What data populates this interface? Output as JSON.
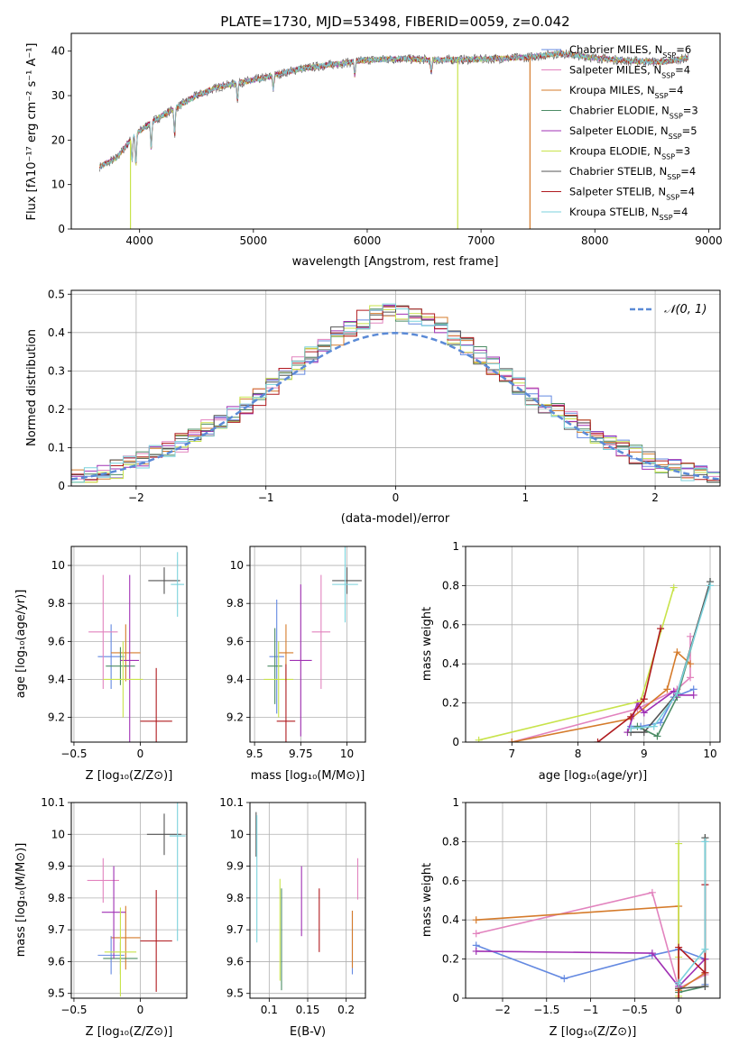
{
  "colors": [
    "#6489E1",
    "#E283BE",
    "#D57B2B",
    "#4C8C65",
    "#A030B4",
    "#C8E34B",
    "#555555",
    "#B01B1F",
    "#7BD2DC"
  ],
  "legend_labels": [
    "Chabrier MILES, N",
    "Salpeter MILES, N",
    "Kroupa MILES, N",
    "Chabrier ELODIE, N",
    "Salpeter ELODIE, N",
    "Kroupa ELODIE, N",
    "Chabrier STELIB, N",
    "Salpeter STELIB, N",
    "Kroupa STELIB, N"
  ],
  "legend_sub": "SSP",
  "legend_counts": [
    "=6",
    "=4",
    "=4",
    "=3",
    "=5",
    "=3",
    "=4",
    "=4",
    "=4"
  ],
  "chart_data": [
    {
      "id": "spectrum",
      "type": "line",
      "title": "PLATE=1730, MJD=53498, FIBERID=0059, z=0.042",
      "xlabel": "wavelength [Angstrom, rest frame]",
      "ylabel": "Flux [fλ10⁻¹⁷ erg cm⁻² s⁻¹ A⁻¹]",
      "xlim": [
        3400,
        9100
      ],
      "ylim": [
        0,
        44
      ],
      "xticks": [
        4000,
        5000,
        6000,
        7000,
        8000,
        9000
      ],
      "yticks": [
        0,
        10,
        20,
        30,
        40
      ],
      "data_range": [
        3650,
        8820
      ],
      "continuum": [
        [
          3650,
          14
        ],
        [
          3800,
          16
        ],
        [
          3950,
          21
        ],
        [
          4100,
          24
        ],
        [
          4300,
          27
        ],
        [
          4500,
          30
        ],
        [
          4700,
          32
        ],
        [
          4900,
          33
        ],
        [
          5100,
          34
        ],
        [
          5400,
          36
        ],
        [
          5700,
          37
        ],
        [
          6000,
          38
        ],
        [
          6300,
          38.3
        ],
        [
          6600,
          38
        ],
        [
          7000,
          38.2
        ],
        [
          7400,
          38.6
        ],
        [
          7700,
          39.5
        ],
        [
          8000,
          38.5
        ],
        [
          8300,
          37.8
        ],
        [
          8600,
          37.6
        ],
        [
          8820,
          38.5
        ]
      ],
      "dips": [
        [
          3934,
          5
        ],
        [
          3968,
          7
        ],
        [
          4102,
          6
        ],
        [
          4308,
          6
        ],
        [
          4861,
          4
        ],
        [
          5175,
          3
        ],
        [
          5890,
          3
        ],
        [
          6563,
          3
        ]
      ],
      "drop_lines": [
        {
          "x": 3920,
          "series": 5
        },
        {
          "x": 6795,
          "series": 5
        },
        {
          "x": 7430,
          "series": 2
        }
      ]
    },
    {
      "id": "residuals",
      "type": "step",
      "xlabel": "(data-model)/error",
      "ylabel": "Normed distribution",
      "xlim": [
        -2.5,
        2.5
      ],
      "ylim": [
        0,
        0.51
      ],
      "xticks": [
        -2,
        -1,
        0,
        1,
        2
      ],
      "yticks": [
        0,
        0.1,
        0.2,
        0.3,
        0.4,
        0.5
      ],
      "reference_label": "𝒩(0, 1)",
      "bin_width": 0.1
    },
    {
      "id": "age_vs_Z",
      "type": "errorbar",
      "xlabel": "Z [log₁₀(Z/Z⊙)]",
      "ylabel": "age  [log₁₀(age/yr)]",
      "xlim": [
        -0.52,
        0.35
      ],
      "ylim": [
        9.07,
        10.1
      ],
      "xticks": [
        -0.5,
        0.0
      ],
      "yticks": [
        9.2,
        9.4,
        9.6,
        9.8,
        10.0
      ],
      "points": [
        {
          "s": 0,
          "x": -0.22,
          "xe": 0.1,
          "y": 9.52,
          "ye": 0.17
        },
        {
          "s": 1,
          "x": -0.28,
          "xe": 0.11,
          "y": 9.65,
          "ye": 0.3
        },
        {
          "s": 2,
          "x": -0.11,
          "xe": 0.11,
          "y": 9.54,
          "ye": 0.15
        },
        {
          "s": 3,
          "x": -0.15,
          "xe": 0.11,
          "y": 9.47,
          "ye": 0.1
        },
        {
          "s": 4,
          "x": -0.08,
          "xe": 0.07,
          "y": 9.5,
          "ye": 0.45
        },
        {
          "s": 5,
          "x": -0.13,
          "xe": 0.15,
          "y": 9.4,
          "ye": 0.2
        },
        {
          "s": 6,
          "x": 0.18,
          "xe": 0.12,
          "y": 9.92,
          "ye": 0.07
        },
        {
          "s": 7,
          "x": 0.12,
          "xe": 0.12,
          "y": 9.18,
          "ye": 0.28
        },
        {
          "s": 8,
          "x": 0.28,
          "xe": 0.05,
          "y": 9.9,
          "ye": 0.17
        }
      ]
    },
    {
      "id": "age_vs_mass",
      "type": "errorbar",
      "xlabel": "mass [log₁₀(M/M⊙)]",
      "ylabel": "",
      "xlim": [
        9.475,
        10.1
      ],
      "ylim": [
        9.07,
        10.1
      ],
      "xticks": [
        9.5,
        9.75,
        10.0
      ],
      "yticks": [
        9.2,
        9.4,
        9.6,
        9.8,
        10.0
      ],
      "points": [
        {
          "s": 0,
          "x": 9.62,
          "xe": 0.04,
          "y": 9.52,
          "ye": 0.3
        },
        {
          "s": 1,
          "x": 9.86,
          "xe": 0.05,
          "y": 9.65,
          "ye": 0.3
        },
        {
          "s": 2,
          "x": 9.67,
          "xe": 0.04,
          "y": 9.54,
          "ye": 0.15
        },
        {
          "s": 3,
          "x": 9.61,
          "xe": 0.04,
          "y": 9.47,
          "ye": 0.2
        },
        {
          "s": 4,
          "x": 9.75,
          "xe": 0.06,
          "y": 9.5,
          "ye": 0.4
        },
        {
          "s": 5,
          "x": 9.63,
          "xe": 0.08,
          "y": 9.4,
          "ye": 0.2
        },
        {
          "s": 6,
          "x": 10.0,
          "xe": 0.08,
          "y": 9.92,
          "ye": 0.07
        },
        {
          "s": 7,
          "x": 9.67,
          "xe": 0.05,
          "y": 9.18,
          "ye": 0.3
        },
        {
          "s": 8,
          "x": 9.99,
          "xe": 0.07,
          "y": 9.9,
          "ye": 0.2
        }
      ]
    },
    {
      "id": "weight_vs_age",
      "type": "line",
      "xlabel": "age  [log₁₀(age/yr)]",
      "ylabel": "mass weight",
      "xlim": [
        6.3,
        10.15
      ],
      "ylim": [
        0,
        1.0
      ],
      "xticks": [
        7,
        8,
        9,
        10
      ],
      "yticks": [
        0,
        0.2,
        0.4,
        0.6,
        0.8,
        1.0
      ],
      "series": [
        {
          "s": 0,
          "x": [
            8.8,
            8.95,
            9.25,
            9.45,
            9.75
          ],
          "y": [
            0.08,
            0.08,
            0.1,
            0.23,
            0.27
          ]
        },
        {
          "s": 1,
          "x": [
            7.0,
            8.9,
            9.5,
            9.7,
            9.7
          ],
          "y": [
            0.0,
            0.17,
            0.27,
            0.33,
            0.54
          ]
        },
        {
          "s": 2,
          "x": [
            7.0,
            8.8,
            9.35,
            9.5,
            9.7
          ],
          "y": [
            0.0,
            0.12,
            0.27,
            0.46,
            0.4
          ]
        },
        {
          "s": 3,
          "x": [
            8.9,
            9.2,
            9.5,
            10.0
          ],
          "y": [
            0.08,
            0.03,
            0.23,
            0.82
          ]
        },
        {
          "s": 4,
          "x": [
            8.75,
            8.9,
            9.0,
            9.45,
            9.5,
            9.75
          ],
          "y": [
            0.05,
            0.2,
            0.15,
            0.26,
            0.24,
            0.24
          ]
        },
        {
          "s": 5,
          "x": [
            6.5,
            8.95,
            9.45
          ],
          "y": [
            0.01,
            0.21,
            0.79
          ]
        },
        {
          "s": 6,
          "x": [
            8.8,
            9.0,
            9.5,
            10.0
          ],
          "y": [
            0.05,
            0.05,
            0.25,
            0.82
          ]
        },
        {
          "s": 7,
          "x": [
            8.3,
            8.8,
            9.0,
            9.25
          ],
          "y": [
            0.0,
            0.13,
            0.22,
            0.58
          ]
        },
        {
          "s": 8,
          "x": [
            8.8,
            9.15,
            9.5,
            10.0
          ],
          "y": [
            0.07,
            0.08,
            0.25,
            0.8
          ]
        }
      ]
    },
    {
      "id": "mass_vs_Z",
      "type": "errorbar",
      "xlabel": "Z [log₁₀(Z/Z⊙)]",
      "ylabel": "mass [log₁₀(M/M⊙)]",
      "xlim": [
        -0.52,
        0.35
      ],
      "ylim": [
        9.485,
        10.1
      ],
      "xticks": [
        -0.5,
        0.0
      ],
      "yticks": [
        9.5,
        9.6,
        9.7,
        9.8,
        9.9,
        10.0,
        10.1
      ],
      "points": [
        {
          "s": 0,
          "x": -0.22,
          "xe": 0.1,
          "y": 9.62,
          "ye": 0.06
        },
        {
          "s": 1,
          "x": -0.28,
          "xe": 0.12,
          "y": 9.855,
          "ye": 0.07
        },
        {
          "s": 2,
          "x": -0.11,
          "xe": 0.11,
          "y": 9.675,
          "ye": 0.1
        },
        {
          "s": 3,
          "x": -0.15,
          "xe": 0.13,
          "y": 9.61,
          "ye": 0.05
        },
        {
          "s": 4,
          "x": -0.2,
          "xe": 0.09,
          "y": 9.755,
          "ye": 0.145
        },
        {
          "s": 5,
          "x": -0.15,
          "xe": 0.12,
          "y": 9.63,
          "ye": 0.14
        },
        {
          "s": 6,
          "x": 0.18,
          "xe": 0.13,
          "y": 10.0,
          "ye": 0.065
        },
        {
          "s": 7,
          "x": 0.12,
          "xe": 0.12,
          "y": 9.665,
          "ye": 0.16
        },
        {
          "s": 8,
          "x": 0.28,
          "xe": 0.06,
          "y": 9.995,
          "ye": 0.33
        }
      ]
    },
    {
      "id": "mass_vs_EBV",
      "type": "errorbar",
      "xlabel": "E(B-V)",
      "ylabel": "",
      "xlim": [
        0.075,
        0.225
      ],
      "ylim": [
        9.485,
        10.1
      ],
      "xticks": [
        0.1,
        0.15,
        0.2
      ],
      "yticks": [
        9.5,
        9.6,
        9.7,
        9.8,
        9.9,
        10.0,
        10.1
      ],
      "points": [
        {
          "s": 0,
          "x": 0.208,
          "xe": 0,
          "y": 9.66,
          "ye": 0.1
        },
        {
          "s": 1,
          "x": 0.215,
          "xe": 0,
          "y": 9.86,
          "ye": 0.065
        },
        {
          "s": 2,
          "x": 0.208,
          "xe": 0,
          "y": 9.67,
          "ye": 0.09
        },
        {
          "s": 3,
          "x": 0.116,
          "xe": 0,
          "y": 9.67,
          "ye": 0.16
        },
        {
          "s": 4,
          "x": 0.142,
          "xe": 0,
          "y": 9.79,
          "ye": 0.11
        },
        {
          "s": 5,
          "x": 0.114,
          "xe": 0,
          "y": 9.7,
          "ye": 0.16
        },
        {
          "s": 6,
          "x": 0.083,
          "xe": 0,
          "y": 10.0,
          "ye": 0.07
        },
        {
          "s": 7,
          "x": 0.165,
          "xe": 0,
          "y": 9.73,
          "ye": 0.1
        },
        {
          "s": 8,
          "x": 0.084,
          "xe": 0,
          "y": 9.86,
          "ye": 0.2
        }
      ]
    },
    {
      "id": "weight_vs_Z",
      "type": "line",
      "xlabel": "Z [log₁₀(Z/Z⊙)]",
      "ylabel": "mass weight",
      "xlim": [
        -2.42,
        0.47
      ],
      "ylim": [
        0,
        1.0
      ],
      "xticks": [
        -2.0,
        -1.5,
        -1.0,
        -0.5,
        0.0
      ],
      "yticks": [
        0,
        0.2,
        0.4,
        0.6,
        0.8,
        1.0
      ],
      "series": [
        {
          "s": 0,
          "x": [
            -2.3,
            -1.3,
            -0.3,
            0.0,
            0.3,
            0.3
          ],
          "y": [
            0.27,
            0.1,
            0.22,
            0.25,
            0.2,
            0.07
          ]
        },
        {
          "s": 1,
          "x": [
            -2.3,
            -0.3,
            0.0,
            0.3
          ],
          "y": [
            0.33,
            0.54,
            0.05,
            0.12
          ]
        },
        {
          "s": 2,
          "x": [
            -2.3,
            0.0,
            0.0,
            0.3
          ],
          "y": [
            0.4,
            0.47,
            0.04,
            0.13
          ]
        },
        {
          "s": 3,
          "x": [
            0.0,
            0.0,
            0.3,
            0.3
          ],
          "y": [
            0.05,
            0.03,
            0.06,
            0.82
          ]
        },
        {
          "s": 4,
          "x": [
            -2.3,
            -0.3,
            0.0,
            0.3
          ],
          "y": [
            0.24,
            0.23,
            0.06,
            0.2
          ]
        },
        {
          "s": 5,
          "x": [
            0.0,
            0.0,
            0.0
          ],
          "y": [
            0.01,
            0.21,
            0.79
          ]
        },
        {
          "s": 6,
          "x": [
            0.0,
            0.0,
            0.3,
            0.3
          ],
          "y": [
            0.05,
            0.05,
            0.06,
            0.82
          ]
        },
        {
          "s": 7,
          "x": [
            0.0,
            0.0,
            0.3,
            0.3
          ],
          "y": [
            0.0,
            0.26,
            0.13,
            0.58
          ]
        },
        {
          "s": 8,
          "x": [
            0.0,
            0.0,
            0.3,
            0.3
          ],
          "y": [
            0.07,
            0.08,
            0.25,
            0.8
          ]
        }
      ]
    }
  ]
}
